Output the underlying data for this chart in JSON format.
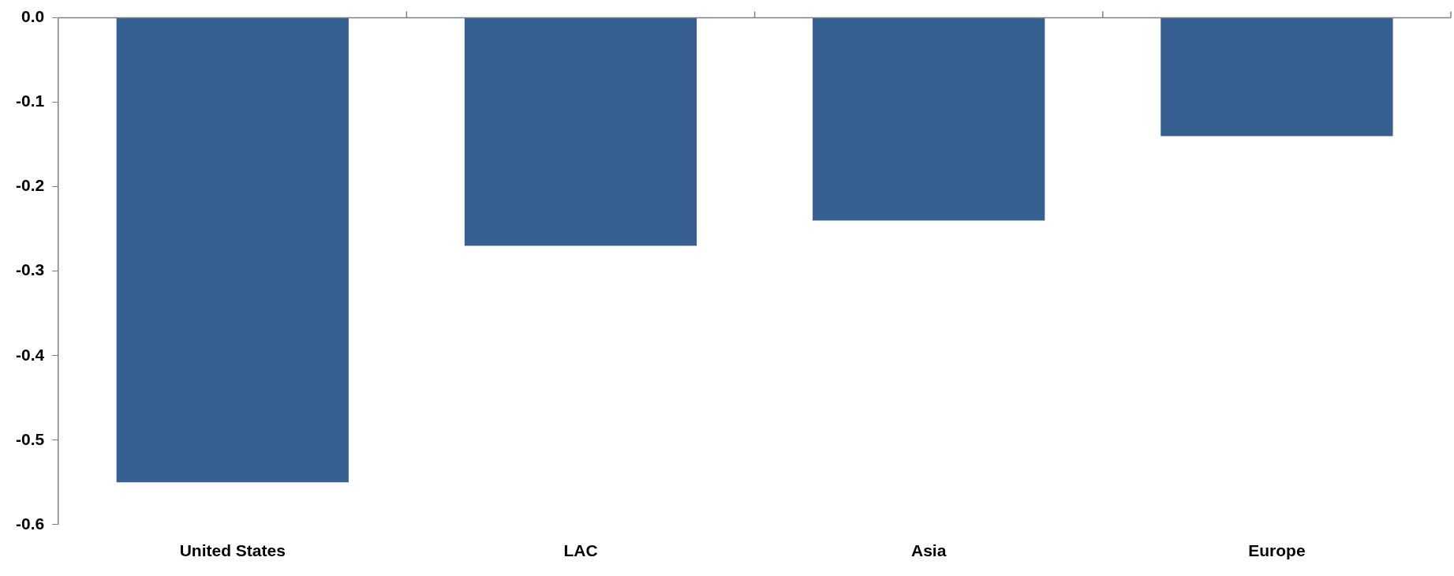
{
  "chart_data": {
    "type": "bar",
    "categories": [
      "United States",
      "LAC",
      "Asia",
      "Europe"
    ],
    "values": [
      -0.55,
      -0.27,
      -0.24,
      -0.14
    ],
    "color": "#376092",
    "ylim": [
      -0.6,
      0
    ],
    "yticks": [
      {
        "value": 0,
        "label": "0.0"
      },
      {
        "value": -0.1,
        "label": "-0.1"
      },
      {
        "value": -0.2,
        "label": "-0.2"
      },
      {
        "value": -0.3,
        "label": "-0.3"
      },
      {
        "value": -0.4,
        "label": "-0.4"
      },
      {
        "value": -0.5,
        "label": "-0.5"
      },
      {
        "value": -0.6,
        "label": "-0.6"
      }
    ]
  }
}
